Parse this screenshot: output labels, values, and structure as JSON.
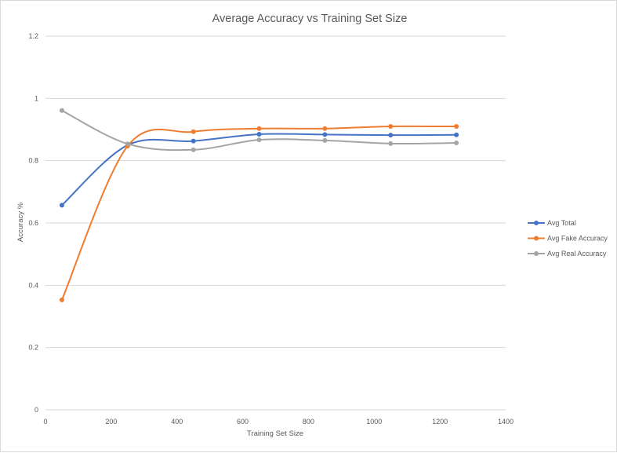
{
  "chart_data": {
    "type": "scatter",
    "title": "Average Accuracy vs Training Set Size",
    "xlabel": "Training Set Size",
    "ylabel": "Accuracy %",
    "xlim": [
      0,
      1400
    ],
    "ylim": [
      0,
      1.2
    ],
    "xticks": [
      "0",
      "200",
      "400",
      "600",
      "800",
      "1000",
      "1200",
      "1400"
    ],
    "yticks": [
      "0",
      "0.2",
      "0.4",
      "0.6",
      "0.8",
      "1",
      "1.2"
    ],
    "grid": "horizontal",
    "legend_position": "right",
    "line_style": "smooth",
    "x": [
      50,
      250,
      450,
      650,
      850,
      1050,
      1250
    ],
    "series": [
      {
        "name": "Avg Total",
        "color": "#4472c4",
        "values": [
          0.657,
          0.85,
          0.863,
          0.885,
          0.884,
          0.882,
          0.883
        ]
      },
      {
        "name": "Avg Fake Accuracy",
        "color": "#ed7d31",
        "values": [
          0.353,
          0.847,
          0.893,
          0.903,
          0.903,
          0.91,
          0.91
        ]
      },
      {
        "name": "Avg Real Accuracy",
        "color": "#a5a5a5",
        "values": [
          0.961,
          0.854,
          0.835,
          0.867,
          0.865,
          0.855,
          0.857
        ]
      }
    ]
  }
}
